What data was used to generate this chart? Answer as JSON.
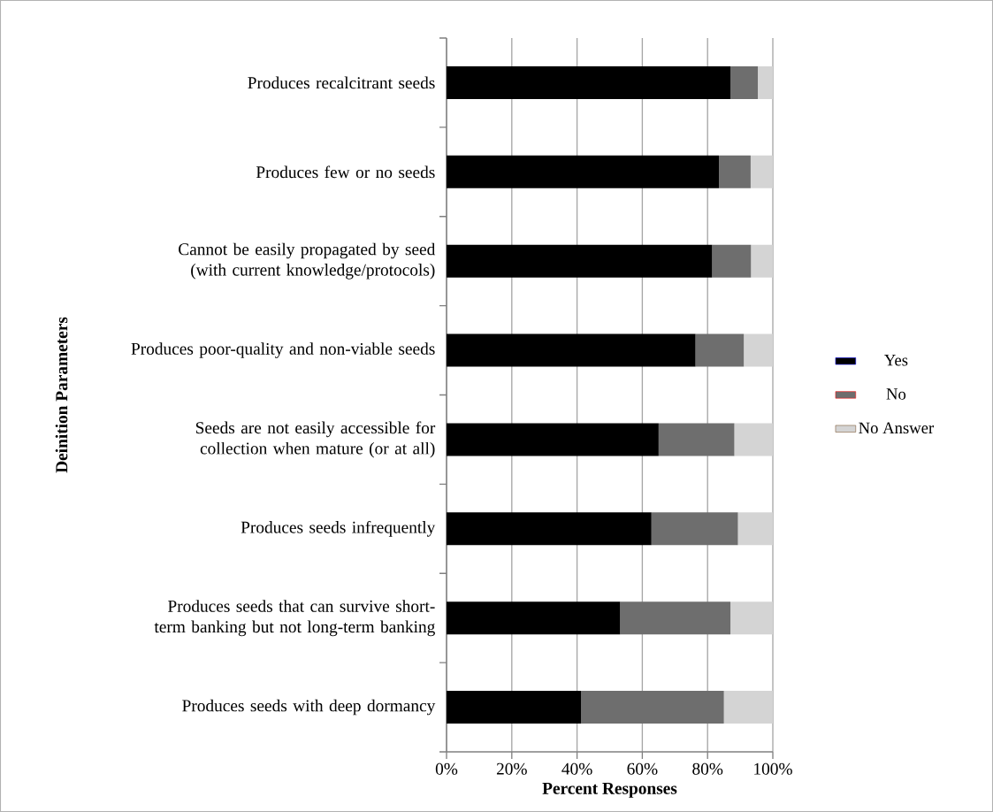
{
  "chart_data": {
    "type": "bar",
    "orientation": "horizontal",
    "stacked": true,
    "categories": [
      "Produces recalcitrant seeds",
      "Produces few or no seeds",
      "Cannot be easily propagated by seed (with current knowledge/protocols)",
      "Produces poor-quality and non-viable seeds",
      "Seeds are not easily accessible for collection when mature (or at all)",
      "Produces seeds infrequently",
      "Produces seeds that can survive short-term banking but not long-term banking",
      "Produces seeds with deep dormancy"
    ],
    "series": [
      {
        "name": "Yes",
        "color": "#000000",
        "values": [
          87.0,
          83.5,
          81.4,
          76.3,
          65.0,
          62.8,
          53.2,
          41.2
        ]
      },
      {
        "name": "No",
        "color": "#6e6e6e",
        "values": [
          8.4,
          9.7,
          11.9,
          14.8,
          23.2,
          26.5,
          33.8,
          43.8
        ]
      },
      {
        "name": "No Answer",
        "color": "#d4d4d4",
        "values": [
          4.6,
          6.8,
          6.7,
          8.9,
          11.8,
          10.7,
          13.0,
          15.0
        ]
      }
    ],
    "xlabel": "Percent Responses",
    "ylabel": "Deinition Parameters",
    "xlim": [
      0,
      100
    ],
    "xticks": [
      {
        "value": 0,
        "label": "0%"
      },
      {
        "value": 20,
        "label": "20%"
      },
      {
        "value": 40,
        "label": "40%"
      },
      {
        "value": 60,
        "label": "60%"
      },
      {
        "value": 80,
        "label": "80%"
      },
      {
        "value": 100,
        "label": "100%"
      }
    ],
    "grid": "x",
    "legend": "right"
  }
}
